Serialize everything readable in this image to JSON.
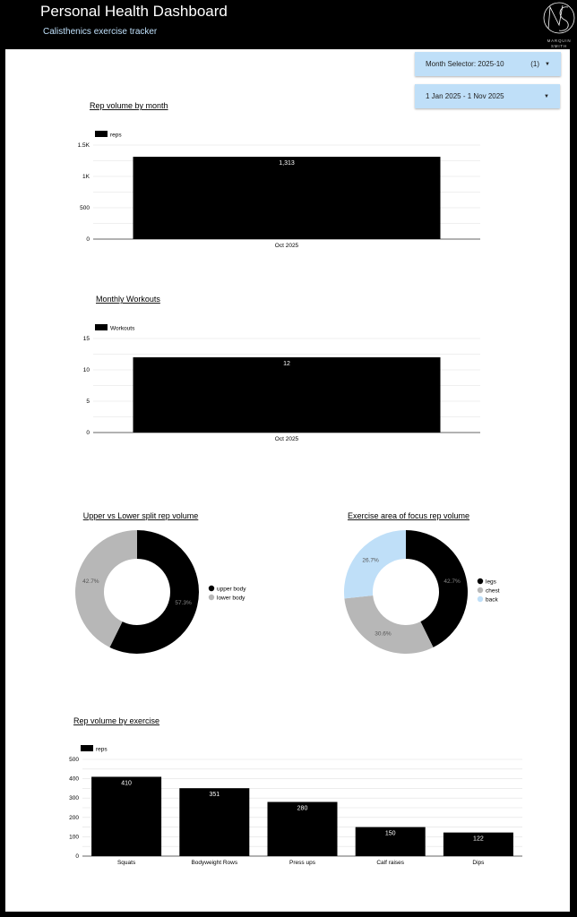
{
  "header": {
    "title": "Personal Health Dashboard",
    "subtitle": "Calisthenics exercise tracker",
    "logo_text": "MARQUIN SMITH"
  },
  "controls": {
    "month_selector": {
      "label": "Month Selector",
      "value": "2025-10",
      "count": "(1)"
    },
    "date_range": {
      "value": "1 Jan 2025 - 1 Nov 2025"
    }
  },
  "colors": {
    "black": "#000000",
    "grey": "#b7b7b7",
    "light_blue": "#bfdff8",
    "grid": "#e0e0e0"
  },
  "chart_data": [
    {
      "type": "bar",
      "title": "Rep volume by month",
      "categories": [
        "Oct 2025"
      ],
      "series": [
        {
          "name": "reps",
          "values": [
            1313
          ]
        }
      ],
      "data_labels": [
        "1,313"
      ],
      "ylim": [
        0,
        1500
      ],
      "yticks": [
        "0",
        "500",
        "1K",
        "1.5K"
      ],
      "grid": true,
      "legend": "top-left"
    },
    {
      "type": "bar",
      "title": "Monthly Workouts",
      "categories": [
        "Oct 2025"
      ],
      "series": [
        {
          "name": "Workouts",
          "values": [
            12
          ]
        }
      ],
      "data_labels": [
        "12"
      ],
      "ylim": [
        0,
        15
      ],
      "yticks": [
        "0",
        "5",
        "10",
        "15"
      ],
      "grid": true,
      "legend": "top-left"
    },
    {
      "type": "pie",
      "donut": true,
      "title": "Upper vs Lower split rep volume",
      "slices": [
        {
          "label": "upper body",
          "value": 57.3,
          "display": "57.3%",
          "color": "#000000"
        },
        {
          "label": "lower body",
          "value": 42.7,
          "display": "42.7%",
          "color": "#b7b7b7"
        }
      ],
      "legend": "right"
    },
    {
      "type": "pie",
      "donut": true,
      "title": "Exercise area of focus rep volume",
      "slices": [
        {
          "label": "legs",
          "value": 42.7,
          "display": "42.7%",
          "color": "#000000"
        },
        {
          "label": "chest",
          "value": 30.6,
          "display": "30.6%",
          "color": "#b7b7b7"
        },
        {
          "label": "back",
          "value": 26.7,
          "display": "26.7%",
          "color": "#bfdff8"
        }
      ],
      "legend": "right"
    },
    {
      "type": "bar",
      "title": "Rep volume by exercise",
      "categories": [
        "Squats",
        "Bodyweight Rows",
        "Press ups",
        "Calf raises",
        "Dips"
      ],
      "series": [
        {
          "name": "reps",
          "values": [
            410,
            351,
            280,
            150,
            122
          ]
        }
      ],
      "data_labels": [
        "410",
        "351",
        "280",
        "150",
        "122"
      ],
      "ylim": [
        0,
        500
      ],
      "yticks": [
        "0",
        "100",
        "200",
        "300",
        "400",
        "500"
      ],
      "grid": true,
      "legend": "top-left"
    }
  ]
}
